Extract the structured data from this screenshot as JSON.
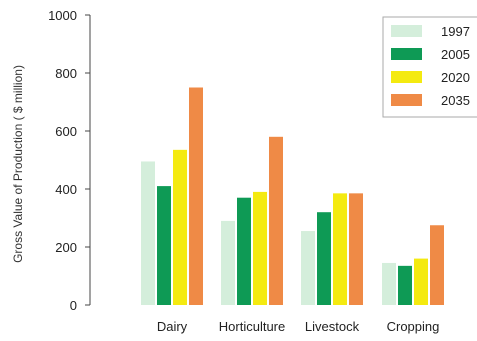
{
  "chart_data": {
    "type": "bar",
    "title": "",
    "xlabel": "",
    "ylabel": "Gross Value of Production ( $ million)",
    "ylim": [
      0,
      1000
    ],
    "yticks": [
      0,
      200,
      400,
      600,
      800,
      1000
    ],
    "categories": [
      "Dairy",
      "Horticulture",
      "Livestock",
      "Cropping"
    ],
    "series": [
      {
        "name": "1997",
        "color": "#d4eedb",
        "values": [
          495,
          290,
          255,
          145
        ]
      },
      {
        "name": "2005",
        "color": "#0e9a55",
        "values": [
          410,
          370,
          320,
          135
        ]
      },
      {
        "name": "2020",
        "color": "#f4ea10",
        "values": [
          535,
          390,
          385,
          160
        ]
      },
      {
        "name": "2035",
        "color": "#ef8a46",
        "values": [
          750,
          580,
          385,
          275
        ]
      }
    ],
    "legend_position": "top-right",
    "grid": false
  }
}
